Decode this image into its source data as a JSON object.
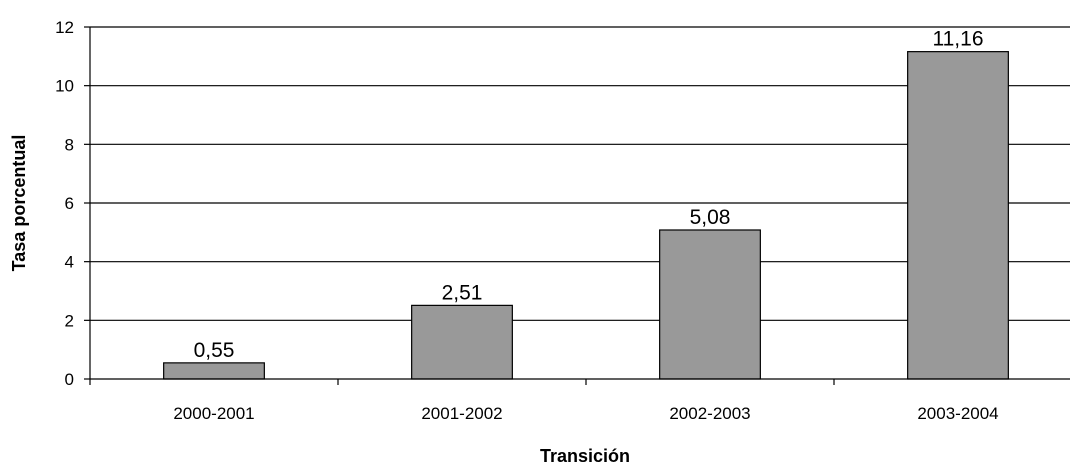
{
  "chart_data": {
    "type": "bar",
    "categories": [
      "2000-2001",
      "2001-2002",
      "2002-2003",
      "2003-2004"
    ],
    "values": [
      0.55,
      2.51,
      5.08,
      11.16
    ],
    "value_labels": [
      "0,55",
      "2,51",
      "5,08",
      "11,16"
    ],
    "xlabel": "Transición",
    "ylabel": "Tasa porcentual",
    "ylim": [
      0,
      12
    ],
    "yticks": [
      0,
      2,
      4,
      6,
      8,
      10,
      12
    ],
    "grid": true,
    "legend": "none",
    "colors": {
      "bar": "#999999",
      "bar_stroke": "#000000",
      "grid": "#000000",
      "axis": "#000000"
    }
  }
}
